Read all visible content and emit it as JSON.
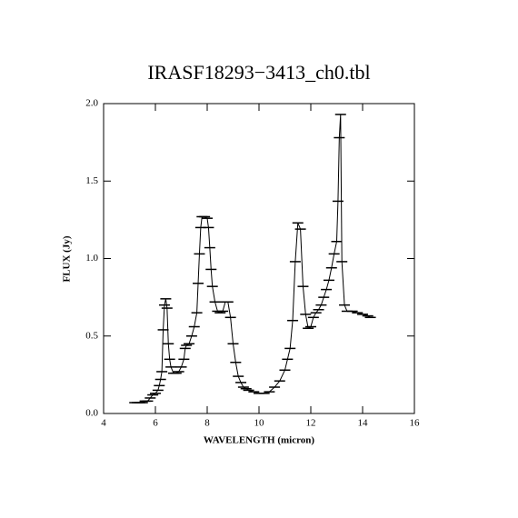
{
  "chart_data": {
    "type": "line",
    "title": "IRASF18293−3413_ch0.tbl",
    "xlabel": "WAVELENGTH (micron)",
    "ylabel": "FLUX (Jy)",
    "xlim": [
      4,
      16
    ],
    "ylim": [
      0,
      2
    ],
    "xticks": [
      4,
      6,
      8,
      10,
      12,
      14,
      16
    ],
    "yticks": [
      {
        "value": 0,
        "label": "0.0"
      },
      0.5,
      {
        "value": 1,
        "label": "1.0"
      },
      1.5,
      {
        "value": 2,
        "label": "2.0"
      }
    ],
    "color": "#000000",
    "marker": "hbar",
    "x": [
      5.2,
      5.3,
      5.4,
      5.5,
      5.6,
      5.7,
      5.8,
      5.9,
      6.0,
      6.1,
      6.15,
      6.2,
      6.25,
      6.3,
      6.35,
      6.4,
      6.45,
      6.5,
      6.55,
      6.6,
      6.7,
      6.8,
      6.9,
      7.0,
      7.1,
      7.15,
      7.2,
      7.3,
      7.4,
      7.5,
      7.6,
      7.65,
      7.7,
      7.75,
      7.8,
      7.9,
      8.0,
      8.05,
      8.1,
      8.15,
      8.2,
      8.3,
      8.4,
      8.5,
      8.6,
      8.7,
      8.8,
      8.9,
      9.0,
      9.1,
      9.2,
      9.3,
      9.4,
      9.5,
      9.6,
      9.8,
      10.0,
      10.2,
      10.4,
      10.6,
      10.8,
      11.0,
      11.1,
      11.2,
      11.3,
      11.4,
      11.5,
      11.6,
      11.7,
      11.8,
      11.9,
      12.0,
      12.1,
      12.2,
      12.3,
      12.4,
      12.5,
      12.6,
      12.7,
      12.8,
      12.9,
      13.0,
      13.05,
      13.1,
      13.15,
      13.2,
      13.3,
      13.4,
      13.6,
      13.8,
      14.0,
      14.2,
      14.3
    ],
    "values": [
      0.07,
      0.07,
      0.07,
      0.07,
      0.08,
      0.08,
      0.1,
      0.12,
      0.13,
      0.15,
      0.18,
      0.22,
      0.27,
      0.54,
      0.7,
      0.74,
      0.68,
      0.45,
      0.35,
      0.3,
      0.26,
      0.26,
      0.27,
      0.3,
      0.35,
      0.42,
      0.44,
      0.45,
      0.5,
      0.56,
      0.65,
      0.84,
      1.03,
      1.2,
      1.27,
      1.27,
      1.26,
      1.2,
      1.07,
      0.93,
      0.82,
      0.72,
      0.66,
      0.65,
      0.66,
      0.72,
      0.72,
      0.62,
      0.45,
      0.33,
      0.24,
      0.2,
      0.17,
      0.16,
      0.15,
      0.14,
      0.13,
      0.13,
      0.14,
      0.17,
      0.21,
      0.28,
      0.35,
      0.42,
      0.6,
      0.98,
      1.23,
      1.19,
      0.82,
      0.64,
      0.55,
      0.56,
      0.62,
      0.65,
      0.67,
      0.7,
      0.75,
      0.8,
      0.86,
      0.94,
      1.03,
      1.11,
      1.37,
      1.78,
      1.93,
      0.98,
      0.7,
      0.66,
      0.66,
      0.65,
      0.64,
      0.63,
      0.62
    ]
  }
}
